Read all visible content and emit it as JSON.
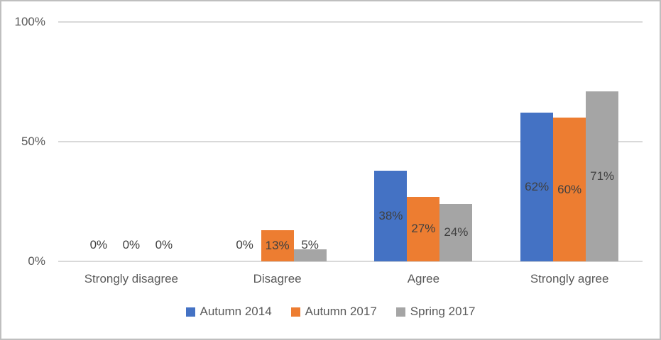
{
  "chart_data": {
    "type": "bar",
    "title": "",
    "categories": [
      "Strongly disagree",
      "Disagree",
      "Agree",
      "Strongly agree"
    ],
    "series": [
      {
        "name": "Autumn 2014",
        "color": "#4472C4",
        "values": [
          0,
          0,
          38,
          62
        ],
        "labels": [
          "0%",
          "0%",
          "38%",
          "62%"
        ]
      },
      {
        "name": "Autumn 2017",
        "color": "#ED7D31",
        "values": [
          0,
          13,
          27,
          60
        ],
        "labels": [
          "0%",
          "13%",
          "27%",
          "60%"
        ]
      },
      {
        "name": "Spring 2017",
        "color": "#A5A5A5",
        "values": [
          0,
          5,
          24,
          71
        ],
        "labels": [
          "0%",
          "5%",
          "24%",
          "71%"
        ]
      }
    ],
    "y_axis": {
      "ticks": [
        {
          "label": "0%",
          "value": 0
        },
        {
          "label": "50%",
          "value": 50
        },
        {
          "label": "100%",
          "value": 100
        }
      ],
      "min": 0,
      "max": 100,
      "gridlines": true
    },
    "legend": {
      "position": "bottom",
      "entries": [
        "Autumn 2014",
        "Autumn 2017",
        "Spring 2017"
      ]
    },
    "colors": {
      "axis_text": "#595959",
      "data_label_text": "#404040",
      "gridline": "#D9D9D9",
      "frame_border": "#BFBFBF",
      "background": "#FFFFFF"
    }
  }
}
